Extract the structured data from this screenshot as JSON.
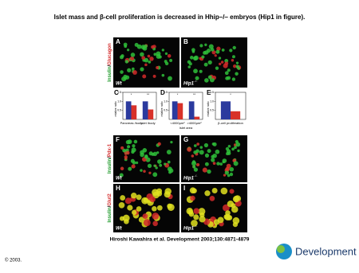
{
  "header": {
    "title": "Islet mass and β-cell proliferation is decreased in Hhip–/– embryos (Hip1 in figure)."
  },
  "figure": {
    "separator": "/",
    "stains": [
      {
        "first": "Insulin",
        "second": "Glucagon"
      },
      {
        "first": "Insulin",
        "second": "Pdx-1"
      },
      {
        "first": "Insulin",
        "second": "Glut2"
      }
    ],
    "panels": [
      {
        "letter": "A",
        "genotype": "Wt"
      },
      {
        "letter": "B",
        "genotype": "Hip1",
        "superscript": "-/-"
      },
      {
        "letter": "F",
        "genotype": "Wt"
      },
      {
        "letter": "G",
        "genotype": "Hip1",
        "superscript": "-/-"
      },
      {
        "letter": "H",
        "genotype": "Wt"
      },
      {
        "letter": "I",
        "genotype": "Hip1",
        "superscript": "-/-"
      }
    ]
  },
  "chart_data": [
    {
      "type": "bar",
      "letter": "C",
      "y_label": "relative ratio",
      "categories": [
        "Pancreas /body",
        "Islet /body"
      ],
      "series": [
        {
          "color": "#2b3a9e",
          "values": [
            1,
            1
          ]
        },
        {
          "color": "#d8322a",
          "values": [
            0.78,
            0.55
          ]
        }
      ],
      "ylim": [
        0,
        1.5
      ],
      "yticks": [
        0.5,
        {
          "value": 1,
          "label": "1.0"
        },
        1.5
      ],
      "annotations": [
        "*",
        "**"
      ]
    },
    {
      "type": "bar",
      "letter": "D",
      "y_label": "relative ratio",
      "x_label": "Islet area",
      "categories": [
        "<4000μm²",
        ">4000μm²"
      ],
      "series": [
        {
          "color": "#2b3a9e",
          "values": [
            1,
            1
          ]
        },
        {
          "color": "#d8322a",
          "values": [
            0.9,
            0.15
          ]
        }
      ],
      "ylim": [
        0,
        1.5
      ],
      "yticks": [
        0.5,
        {
          "value": 1,
          "label": "1.0"
        },
        1.5
      ],
      "annotations": [
        "*",
        "**"
      ]
    },
    {
      "type": "bar",
      "letter": "E",
      "y_label": "relative ratio",
      "categories": [
        "β-cell proliferation"
      ],
      "series": [
        {
          "color": "#2b3a9e",
          "values": [
            1
          ]
        },
        {
          "color": "#d8322a",
          "values": [
            0.45
          ]
        }
      ],
      "ylim": [
        0,
        1.5
      ],
      "yticks": [
        0.5,
        {
          "value": 1,
          "label": "1.0"
        },
        1.5
      ],
      "annotations": [
        "*"
      ]
    }
  ],
  "citation": "Hiroshi Kawahira et al. Development 2003;130:4871-4879",
  "copyright": "© 2003.",
  "logo": "Development"
}
